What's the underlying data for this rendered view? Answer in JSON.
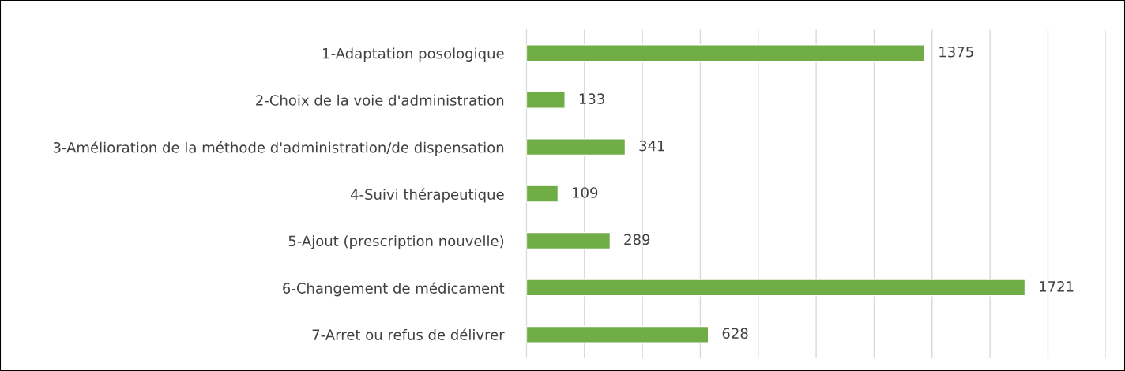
{
  "chart_data": {
    "type": "bar",
    "orientation": "horizontal",
    "categories": [
      "1-Adaptation posologique",
      "2-Choix de la voie d'administration",
      "3-Amélioration de la méthode d'administration/de dispensation",
      "4-Suivi thérapeutique",
      "5-Ajout (prescription nouvelle)",
      "6-Changement de médicament",
      "7-Arret ou refus de délivrer"
    ],
    "values": [
      1375,
      133,
      341,
      109,
      289,
      1721,
      628
    ],
    "color": "#70ad47",
    "xlim": [
      0,
      2000
    ],
    "xticks": [
      {
        "value": 0,
        "label": null
      },
      {
        "value": 200,
        "label": null
      },
      {
        "value": 400,
        "label": null
      },
      {
        "value": 600,
        "label": null
      },
      {
        "value": 800,
        "label": null
      },
      {
        "value": 1000,
        "label": null
      },
      {
        "value": 1200,
        "label": null
      },
      {
        "value": 1400,
        "label": null
      },
      {
        "value": 1600,
        "label": null
      },
      {
        "value": 1800,
        "label": null
      },
      {
        "value": 2000,
        "label": null
      }
    ],
    "grid": "x",
    "tick_labels": "y",
    "data_labels": true
  }
}
